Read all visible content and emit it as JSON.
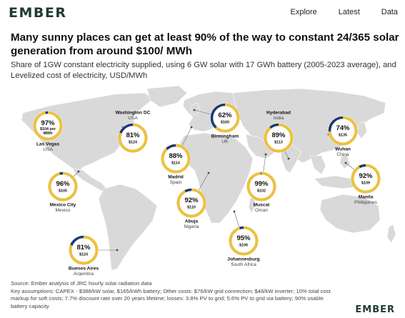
{
  "header": {
    "logo": "EMBER",
    "nav": [
      "Explore",
      "Latest",
      "Data"
    ]
  },
  "title": "Many sunny places can get at least 90% of the way to constant 24/365 solar generation from around $100/ MWh",
  "subtitle": "Share of 1GW constant electricity supplied, using 6 GW solar with 17 GWh battery (2005-2023 average), and Levelized cost of electricity, USD/MWh",
  "footer": {
    "source": "Source: Ember analysis of JRC hourly solar radiation data",
    "assumptions": "Key assumptions: CAPEX - $388/kW solar, $165/kWh battery; Other costs: $76/kW grid connection; $48/kW inverter; 10% total cost markup for soft costs; 7.7% discount rate over 20 years lifetime; losses: 3.8% PV to grid; 5.6% PV to grid via battery; 90% usable battery capacity",
    "logo": "EMBER"
  },
  "colors": {
    "ring_fill": "#f2c230",
    "ring_rest": "#1d3a6e",
    "land": "#d9d9d9",
    "accent": "#1f3b33"
  },
  "chart_data": {
    "type": "map-donut",
    "title": "Many sunny places can get at least 90% of the way to constant 24/365 solar generation from around $100/ MWh",
    "series": [
      {
        "city": "Las Vegas",
        "country": "USA",
        "share_label": "97%",
        "share": 97,
        "cost_label": "$104 per MWh",
        "cost": 104
      },
      {
        "city": "Washington DC",
        "country": "USA",
        "share_label": "81%",
        "share": 81,
        "cost_label": "$124",
        "cost": 124
      },
      {
        "city": "Mexico City",
        "country": "Mexico",
        "share_label": "96%",
        "share": 96,
        "cost_label": "$105",
        "cost": 105
      },
      {
        "city": "Birmingham",
        "country": "UK",
        "share_label": "62%",
        "share": 62,
        "cost_label": "$160",
        "cost": 160
      },
      {
        "city": "Madrid",
        "country": "Spain",
        "share_label": "88%",
        "share": 88,
        "cost_label": "$114",
        "cost": 114
      },
      {
        "city": "Abuja",
        "country": "Nigeria",
        "share_label": "92%",
        "share": 92,
        "cost_label": "$110",
        "cost": 110
      },
      {
        "city": "Hyderabad",
        "country": "India",
        "share_label": "89%",
        "share": 89,
        "cost_label": "$113",
        "cost": 113
      },
      {
        "city": "Muscat",
        "country": "Oman",
        "share_label": "99%",
        "share": 99,
        "cost_label": "$102",
        "cost": 102
      },
      {
        "city": "Wuhan",
        "country": "China",
        "share_label": "74%",
        "share": 74,
        "cost_label": "$135",
        "cost": 135
      },
      {
        "city": "Manila",
        "country": "Philippines",
        "share_label": "92%",
        "share": 92,
        "cost_label": "$109",
        "cost": 109
      },
      {
        "city": "Johannesburg",
        "country": "South Africa",
        "share_label": "95%",
        "share": 95,
        "cost_label": "$106",
        "cost": 106
      },
      {
        "city": "Buenos Aires",
        "country": "Argentina",
        "share_label": "81%",
        "share": 81,
        "cost_label": "$124",
        "cost": 124
      }
    ]
  }
}
